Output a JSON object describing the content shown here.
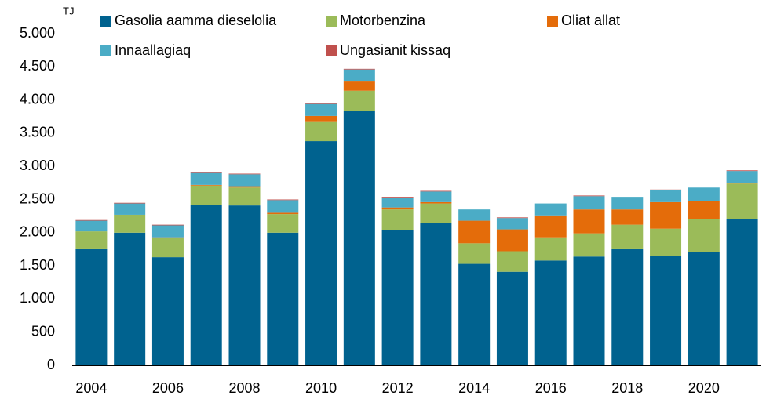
{
  "chart_data": {
    "type": "bar",
    "stacked": true,
    "y_label": "TJ",
    "categories": [
      "2004",
      null,
      "2006",
      null,
      "2008",
      null,
      "2010",
      null,
      "2012",
      null,
      "2014",
      null,
      "2016",
      null,
      "2018",
      null,
      "2020",
      null
    ],
    "series": [
      {
        "name": "Gasolia aamma dieselolia",
        "color": "#00628f",
        "values": [
          1750,
          2000,
          1630,
          2420,
          2410,
          2000,
          3380,
          3840,
          2040,
          2140,
          1530,
          1410,
          1580,
          1640,
          1750,
          1650,
          1710,
          2210
        ]
      },
      {
        "name": "Motorbenzina",
        "color": "#9bbb59",
        "values": [
          270,
          270,
          290,
          290,
          270,
          280,
          300,
          300,
          310,
          300,
          310,
          310,
          350,
          350,
          370,
          410,
          490,
          530
        ]
      },
      {
        "name": "Oliat allat",
        "color": "#e46c0a",
        "values": [
          0,
          0,
          10,
          10,
          20,
          20,
          80,
          150,
          30,
          20,
          340,
          330,
          330,
          360,
          230,
          400,
          280,
          10
        ]
      },
      {
        "name": "Innaallagiaq",
        "color": "#4bacc6",
        "values": [
          160,
          170,
          180,
          180,
          180,
          190,
          180,
          170,
          150,
          160,
          170,
          170,
          180,
          200,
          190,
          180,
          200,
          180
        ]
      },
      {
        "name": "Ungasianit kissaq",
        "color": "#c0504d",
        "values": [
          10,
          10,
          10,
          10,
          10,
          10,
          10,
          10,
          10,
          10,
          0,
          10,
          0,
          10,
          0,
          10,
          0,
          10
        ]
      }
    ],
    "ylim": [
      0,
      5000
    ],
    "yticks": [
      0,
      500,
      {
        "value": 1000,
        "label": "1.000"
      },
      {
        "value": 1500,
        "label": "1.500"
      },
      {
        "value": 2000,
        "label": "2.000"
      },
      {
        "value": 2500,
        "label": "2.500"
      },
      {
        "value": 3000,
        "label": "3.000"
      },
      {
        "value": 3500,
        "label": "3.500"
      },
      {
        "value": 4000,
        "label": "4.000"
      },
      {
        "value": 4500,
        "label": "4.500"
      },
      {
        "value": 5000,
        "label": "5.000"
      }
    ],
    "grid": false,
    "legend": "top"
  }
}
